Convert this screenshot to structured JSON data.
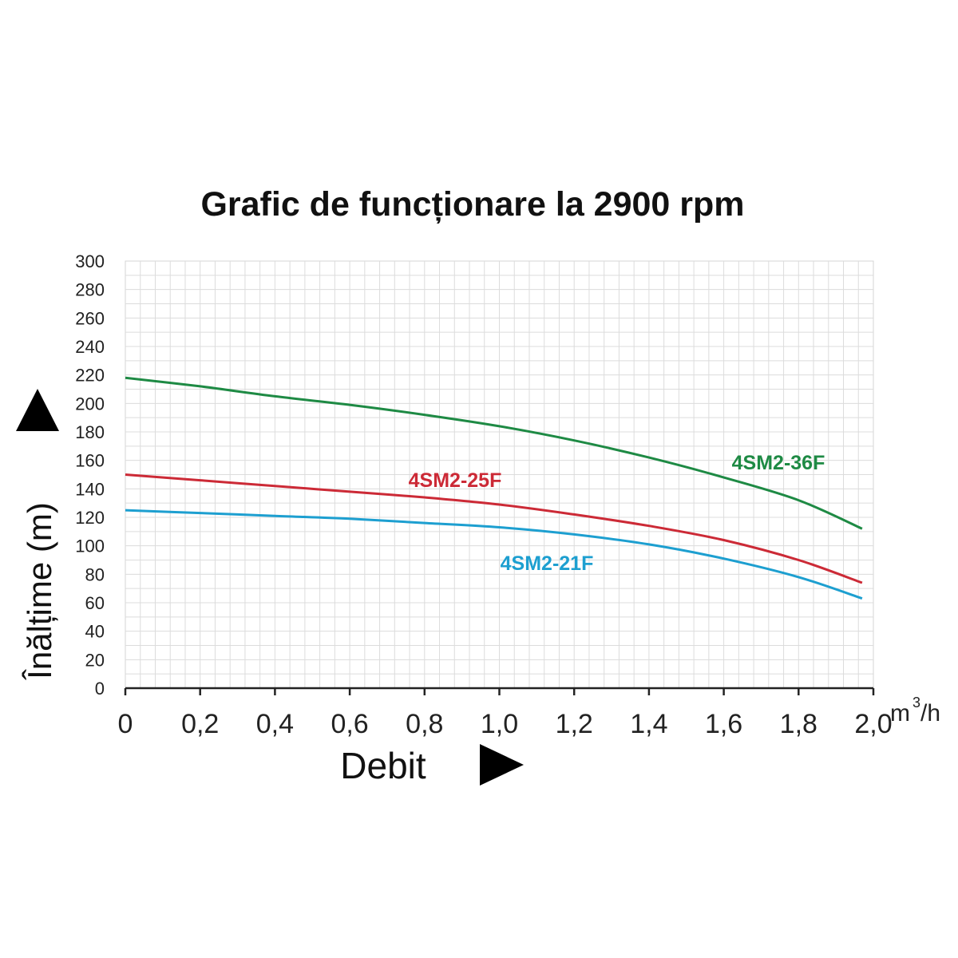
{
  "chart_data": {
    "type": "line",
    "title": "Grafic de funcționare la 2900 rpm",
    "xlabel": "Debit",
    "ylabel": "Înălțime (m)",
    "x_unit": "m",
    "x_unit_sup": "3",
    "x_unit_tail": "/h",
    "xlim": [
      0,
      2.0
    ],
    "ylim": [
      0,
      300
    ],
    "x_ticks": [
      "0",
      "0,2",
      "0,4",
      "0,6",
      "0,8",
      "1,0",
      "1,2",
      "1,4",
      "1,6",
      "1,8",
      "2,0"
    ],
    "y_ticks": [
      "0",
      "20",
      "40",
      "60",
      "80",
      "100",
      "120",
      "140",
      "160",
      "180",
      "200",
      "220",
      "240",
      "260",
      "280",
      "300"
    ],
    "grid": true,
    "series": [
      {
        "name": "4SM2-36F",
        "color": "#1e8a44",
        "x": [
          0,
          0.2,
          0.4,
          0.6,
          0.8,
          1.0,
          1.2,
          1.4,
          1.6,
          1.8,
          1.97
        ],
        "values": [
          218,
          212,
          205,
          199,
          192,
          184,
          174,
          162,
          148,
          132,
          112
        ]
      },
      {
        "name": "4SM2-25F",
        "color": "#cc2a36",
        "x": [
          0,
          0.2,
          0.4,
          0.6,
          0.8,
          1.0,
          1.2,
          1.4,
          1.6,
          1.8,
          1.97
        ],
        "values": [
          150,
          146,
          142,
          138,
          134,
          129,
          122,
          114,
          104,
          90,
          74
        ]
      },
      {
        "name": "4SM2-21F",
        "color": "#1d9fd0",
        "x": [
          0,
          0.2,
          0.4,
          0.6,
          0.8,
          1.0,
          1.2,
          1.4,
          1.6,
          1.8,
          1.97
        ],
        "values": [
          125,
          123,
          121,
          119,
          116,
          113,
          108,
          101,
          91,
          78,
          63
        ]
      }
    ]
  }
}
